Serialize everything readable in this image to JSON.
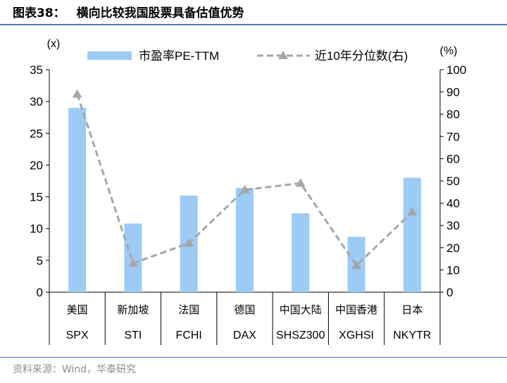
{
  "header": {
    "figure_no": "图表38：",
    "title": "横向比较我国股票具备估值优势"
  },
  "source": "资料来源：Wind，华泰研究",
  "chart_data": {
    "type": "bar",
    "categories": [
      {
        "cn": "美国",
        "code": "SPX"
      },
      {
        "cn": "新加坡",
        "code": "STI"
      },
      {
        "cn": "法国",
        "code": "FCHI"
      },
      {
        "cn": "德国",
        "code": "DAX"
      },
      {
        "cn": "中国大陆",
        "code": "SHSZ300"
      },
      {
        "cn": "中国香港",
        "code": "XGHSI"
      },
      {
        "cn": "日本",
        "code": "NKYTR"
      }
    ],
    "series": [
      {
        "name": "市盈率PE-TTM",
        "type": "bar",
        "axis": "left",
        "color": "#9ccbf5",
        "values": [
          29.0,
          10.8,
          15.2,
          16.4,
          12.4,
          8.7,
          18.0
        ]
      },
      {
        "name": "近10年分位数(右)",
        "type": "line",
        "axis": "right",
        "color": "#a6a6a6",
        "values": [
          89,
          13,
          22,
          46,
          49,
          12,
          36
        ]
      }
    ],
    "y_left": {
      "unit": "(x)",
      "min": 0,
      "max": 35,
      "ticks": [
        0,
        5,
        10,
        15,
        20,
        25,
        30,
        35
      ]
    },
    "y_right": {
      "unit": "(%)",
      "min": 0,
      "max": 100,
      "ticks": [
        0,
        10,
        20,
        30,
        40,
        50,
        60,
        70,
        80,
        90,
        100
      ]
    },
    "grid": false,
    "legend": "top"
  }
}
